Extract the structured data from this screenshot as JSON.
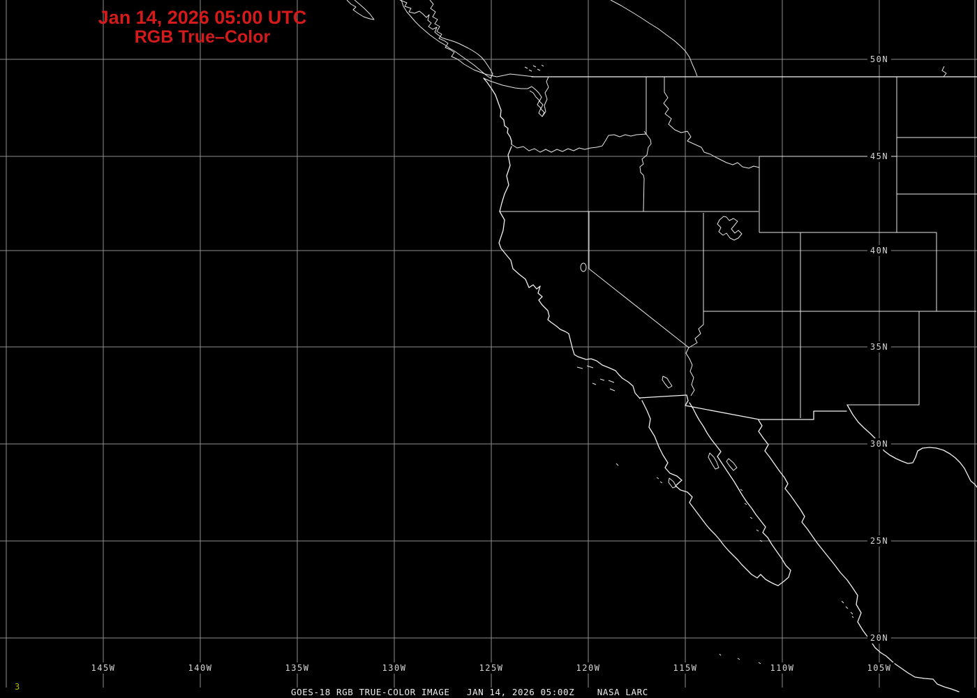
{
  "header": {
    "title_line1": "Jan 14, 2026 05:00 UTC",
    "title_line2": "RGB True–Color",
    "title_color": "#d41a1a"
  },
  "map": {
    "product": "GOES-18 satellite true-color scene (night, no visible imagery)",
    "lat_labels": [
      "50N",
      "45N",
      "40N",
      "35N",
      "30N",
      "25N",
      "20N"
    ],
    "lon_labels": [
      "145W",
      "140W",
      "135W",
      "130W",
      "125W",
      "120W",
      "115W",
      "110W",
      "105W"
    ],
    "grid_color": "#8f8f8f",
    "coast_color": "#f2f2f2",
    "background_color": "#000000"
  },
  "footer": {
    "caption": "GOES-18 RGB TRUE-COLOR IMAGE   JAN 14, 2026 05:00Z    NASA LARC",
    "frame_number": "3",
    "frame_color": "#b5b500"
  }
}
